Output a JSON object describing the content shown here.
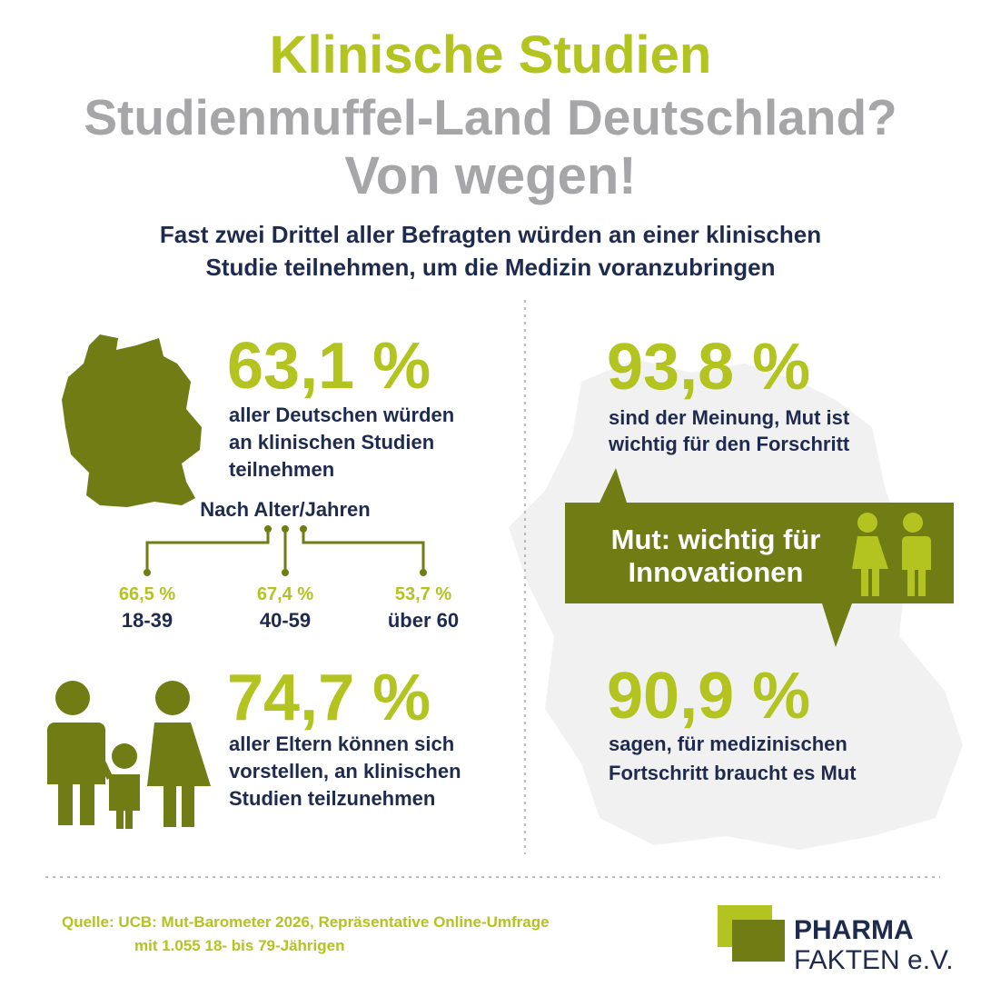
{
  "header": {
    "title": "Klinische Studien",
    "subtitle_lines": [
      "Studienmuffel-Land Deutschland?",
      "Von wegen!"
    ],
    "lead_lines": [
      "Fast zwei Drittel aller Befragten würden an einer klinischen",
      "Studie teilnehmen, um die Medizin voranzubringen"
    ]
  },
  "left": {
    "stat1": {
      "value": "63,1 %",
      "lines": [
        "aller Deutschen würden",
        "an klinischen Studien",
        "teilnehmen"
      ]
    },
    "age_title": "Nach Alter/Jahren",
    "age_groups": [
      {
        "value": "66,5 %",
        "label": "18-39"
      },
      {
        "value": "67,4 %",
        "label": "40-59"
      },
      {
        "value": "53,7 %",
        "label": "über 60"
      }
    ],
    "stat2": {
      "value": "74,7 %",
      "lines": [
        "aller Eltern können sich",
        "vorstellen, an klinischen",
        "Studien teilzunehmen"
      ]
    }
  },
  "right": {
    "stat1": {
      "value": "93,8 %",
      "lines": [
        "sind der Meinung, Mut ist",
        "wichtig für den Forschritt"
      ]
    },
    "callout_lines": [
      "Mut: wichtig für",
      "Innovationen"
    ],
    "stat2": {
      "value": "90,9 %",
      "lines": [
        "sagen, für medizinischen",
        "Fortschritt braucht es Mut"
      ]
    }
  },
  "footer": {
    "source_lines": [
      "Quelle: UCB: Mut-Barometer 2026, Repräsentative Online-Umfrage",
      "mit 1.055 18- bis 79-Jährigen"
    ],
    "logo_lines": [
      "PHARMA",
      "FAKTEN e.V."
    ]
  }
}
